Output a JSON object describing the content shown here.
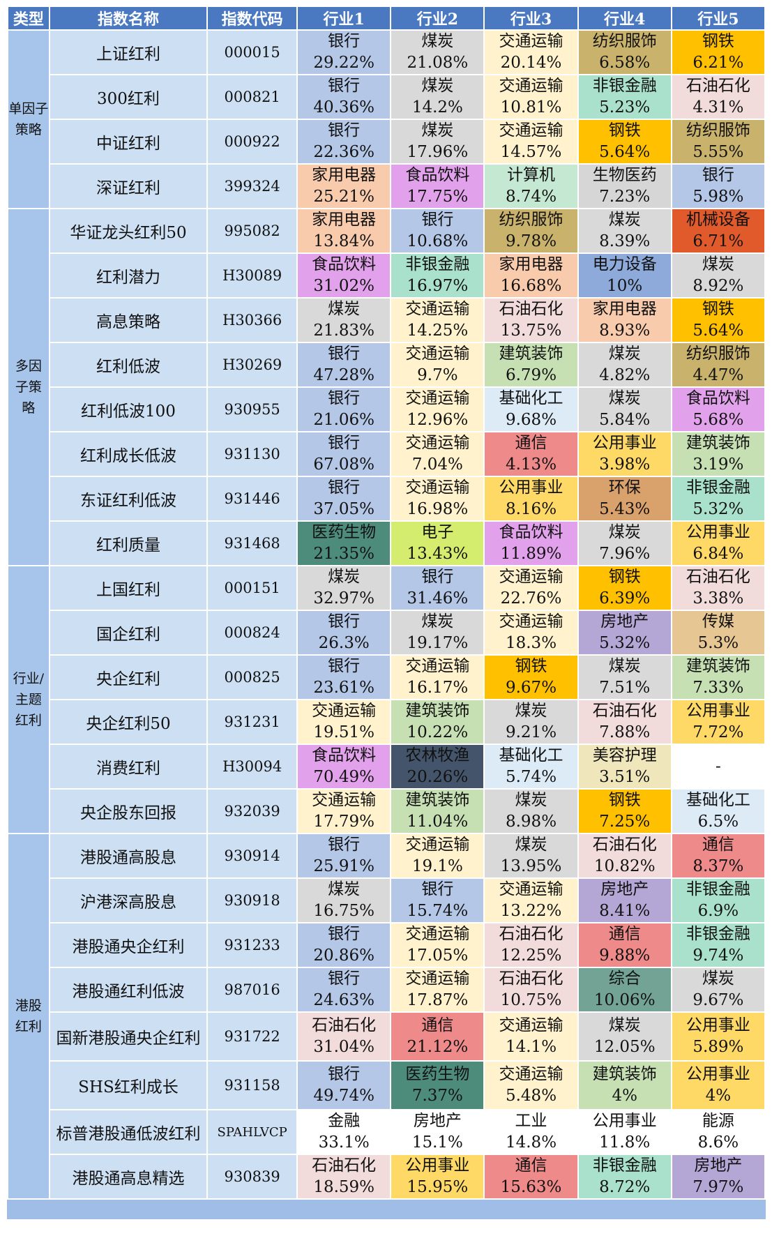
{
  "headers": [
    "类型",
    "指数名称",
    "指数代码",
    "行业1",
    "行业2",
    "行业3",
    "行业4",
    "行业5"
  ],
  "industry_colors": {
    "银行": "#b4c7e7",
    "煤炭": "#d9d9d9",
    "交通运输": "#fff2cc",
    "纺织服饰": "#c9b26b",
    "钢铁": "#ffc000",
    "非银金融": "#a9e1cd",
    "石油石化": "#f2dcdb",
    "家用电器": "#f8cbad",
    "食品饮料": "#e2a2eb",
    "计算机": "#c5e8d2",
    "生物医药": "#d6d6d6",
    "机械设备": "#e05a2b",
    "电力设备": "#8eaadb",
    "建筑装饰": "#c6e0b4",
    "基础化工": "#ddebf7",
    "通信": "#ef8a8a",
    "公用事业": "#ffd966",
    "环保": "#d9a16b",
    "医药生物": "#4d8c7a",
    "电子": "#d4ed6e",
    "房地产": "#b4a7d6",
    "传媒": "#e6c692",
    "农林牧渔": "#44546a",
    "美容护理": "#efe6bb",
    "综合": "#72a394",
    "default": "#ffffff"
  },
  "groups": [
    {
      "type": "单因子\n策略",
      "rows": [
        {
          "name": "上证红利",
          "code": "000015",
          "industries": [
            [
              "银行",
              "29.22%"
            ],
            [
              "煤炭",
              "21.08%"
            ],
            [
              "交通运输",
              "20.14%"
            ],
            [
              "纺织服饰",
              "6.58%"
            ],
            [
              "钢铁",
              "6.21%"
            ]
          ]
        },
        {
          "name": "300红利",
          "code": "000821",
          "industries": [
            [
              "银行",
              "40.36%"
            ],
            [
              "煤炭",
              "14.2%"
            ],
            [
              "交通运输",
              "10.81%"
            ],
            [
              "非银金融",
              "5.23%"
            ],
            [
              "石油石化",
              "4.31%"
            ]
          ]
        },
        {
          "name": "中证红利",
          "code": "000922",
          "industries": [
            [
              "银行",
              "22.36%"
            ],
            [
              "煤炭",
              "17.96%"
            ],
            [
              "交通运输",
              "14.57%"
            ],
            [
              "钢铁",
              "5.64%"
            ],
            [
              "纺织服饰",
              "5.55%"
            ]
          ]
        },
        {
          "name": "深证红利",
          "code": "399324",
          "industries": [
            [
              "家用电器",
              "25.21%"
            ],
            [
              "食品饮料",
              "17.75%"
            ],
            [
              "计算机",
              "8.74%"
            ],
            [
              "生物医药",
              "7.23%"
            ],
            [
              "银行",
              "5.98%"
            ]
          ]
        }
      ]
    },
    {
      "type": "多因\n子策\n略",
      "rows": [
        {
          "name": "华证龙头红利50",
          "code": "995082",
          "industries": [
            [
              "家用电器",
              "13.84%"
            ],
            [
              "银行",
              "10.68%"
            ],
            [
              "纺织服饰",
              "9.78%"
            ],
            [
              "煤炭",
              "8.39%"
            ],
            [
              "机械设备",
              "6.71%"
            ]
          ]
        },
        {
          "name": "红利潜力",
          "code": "H30089",
          "industries": [
            [
              "食品饮料",
              "31.02%"
            ],
            [
              "非银金融",
              "16.97%"
            ],
            [
              "家用电器",
              "16.68%"
            ],
            [
              "电力设备",
              "10%"
            ],
            [
              "煤炭",
              "8.92%"
            ]
          ]
        },
        {
          "name": "高息策略",
          "code": "H30366",
          "industries": [
            [
              "煤炭",
              "21.83%"
            ],
            [
              "交通运输",
              "14.25%"
            ],
            [
              "石油石化",
              "13.75%"
            ],
            [
              "家用电器",
              "8.93%"
            ],
            [
              "钢铁",
              "5.64%"
            ]
          ]
        },
        {
          "name": "红利低波",
          "code": "H30269",
          "industries": [
            [
              "银行",
              "47.28%"
            ],
            [
              "交通运输",
              "9.7%"
            ],
            [
              "建筑装饰",
              "6.79%"
            ],
            [
              "煤炭",
              "4.82%"
            ],
            [
              "纺织服饰",
              "4.47%"
            ]
          ]
        },
        {
          "name": "红利低波100",
          "code": "930955",
          "industries": [
            [
              "银行",
              "21.06%"
            ],
            [
              "交通运输",
              "12.96%"
            ],
            [
              "基础化工",
              "9.68%"
            ],
            [
              "煤炭",
              "5.84%"
            ],
            [
              "食品饮料",
              "5.68%"
            ]
          ]
        },
        {
          "name": "红利成长低波",
          "code": "931130",
          "industries": [
            [
              "银行",
              "67.08%"
            ],
            [
              "交通运输",
              "7.04%"
            ],
            [
              "通信",
              "4.13%"
            ],
            [
              "公用事业",
              "3.98%"
            ],
            [
              "建筑装饰",
              "3.19%"
            ]
          ]
        },
        {
          "name": "东证红利低波",
          "code": "931446",
          "industries": [
            [
              "银行",
              "37.05%"
            ],
            [
              "交通运输",
              "16.98%"
            ],
            [
              "公用事业",
              "8.16%"
            ],
            [
              "环保",
              "5.43%"
            ],
            [
              "非银金融",
              "5.32%"
            ]
          ]
        },
        {
          "name": "红利质量",
          "code": "931468",
          "industries": [
            [
              "医药生物",
              "21.35%"
            ],
            [
              "电子",
              "13.43%"
            ],
            [
              "食品饮料",
              "11.89%"
            ],
            [
              "煤炭",
              "7.96%"
            ],
            [
              "公用事业",
              "6.84%"
            ]
          ]
        }
      ]
    },
    {
      "type": "行业/\n主题\n红利",
      "rows": [
        {
          "name": "上国红利",
          "code": "000151",
          "industries": [
            [
              "煤炭",
              "32.97%"
            ],
            [
              "银行",
              "31.46%"
            ],
            [
              "交通运输",
              "22.76%"
            ],
            [
              "钢铁",
              "6.39%"
            ],
            [
              "石油石化",
              "3.38%"
            ]
          ]
        },
        {
          "name": "国企红利",
          "code": "000824",
          "industries": [
            [
              "银行",
              "26.3%"
            ],
            [
              "煤炭",
              "19.17%"
            ],
            [
              "交通运输",
              "18.3%"
            ],
            [
              "房地产",
              "5.32%"
            ],
            [
              "传媒",
              "5.3%"
            ]
          ]
        },
        {
          "name": "央企红利",
          "code": "000825",
          "industries": [
            [
              "银行",
              "23.61%"
            ],
            [
              "交通运输",
              "16.17%"
            ],
            [
              "钢铁",
              "9.67%"
            ],
            [
              "煤炭",
              "7.51%"
            ],
            [
              "建筑装饰",
              "7.33%"
            ]
          ]
        },
        {
          "name": "央企红利50",
          "code": "931231",
          "industries": [
            [
              "交通运输",
              "19.51%"
            ],
            [
              "建筑装饰",
              "10.22%"
            ],
            [
              "煤炭",
              "9.21%"
            ],
            [
              "石油石化",
              "7.88%"
            ],
            [
              "公用事业",
              "7.72%"
            ]
          ]
        },
        {
          "name": "消费红利",
          "code": "H30094",
          "industries": [
            [
              "食品饮料",
              "70.49%"
            ],
            [
              "农林牧渔",
              "20.26%"
            ],
            [
              "基础化工",
              "5.74%"
            ],
            [
              "美容护理",
              "3.51%"
            ],
            [
              "-",
              ""
            ]
          ]
        },
        {
          "name": "央企股东回报",
          "code": "932039",
          "industries": [
            [
              "交通运输",
              "17.79%"
            ],
            [
              "建筑装饰",
              "11.04%"
            ],
            [
              "煤炭",
              "8.98%"
            ],
            [
              "钢铁",
              "7.25%"
            ],
            [
              "基础化工",
              "6.5%"
            ]
          ]
        }
      ]
    },
    {
      "type": "港股\n红利",
      "rows": [
        {
          "name": "港股通高股息",
          "code": "930914",
          "industries": [
            [
              "银行",
              "25.91%"
            ],
            [
              "交通运输",
              "19.1%"
            ],
            [
              "煤炭",
              "13.95%"
            ],
            [
              "石油石化",
              "10.82%"
            ],
            [
              "通信",
              "8.37%"
            ]
          ]
        },
        {
          "name": "沪港深高股息",
          "code": "930918",
          "industries": [
            [
              "煤炭",
              "16.75%"
            ],
            [
              "银行",
              "15.74%"
            ],
            [
              "交通运输",
              "13.22%"
            ],
            [
              "房地产",
              "8.41%"
            ],
            [
              "非银金融",
              "6.9%"
            ]
          ]
        },
        {
          "name": "港股通央企红利",
          "code": "931233",
          "industries": [
            [
              "银行",
              "20.86%"
            ],
            [
              "交通运输",
              "17.05%"
            ],
            [
              "石油石化",
              "12.25%"
            ],
            [
              "通信",
              "9.88%"
            ],
            [
              "非银金融",
              "9.74%"
            ]
          ]
        },
        {
          "name": "港股通红利低波",
          "code": "987016",
          "industries": [
            [
              "银行",
              "24.63%"
            ],
            [
              "交通运输",
              "17.87%"
            ],
            [
              "石油石化",
              "10.75%"
            ],
            [
              "综合",
              "10.06%"
            ],
            [
              "煤炭",
              "9.67%"
            ]
          ]
        },
        {
          "name": "国新港股通央企红利",
          "code": "931722",
          "industries": [
            [
              "石油石化",
              "31.04%"
            ],
            [
              "通信",
              "21.12%"
            ],
            [
              "交通运输",
              "14.1%"
            ],
            [
              "煤炭",
              "12.05%"
            ],
            [
              "公用事业",
              "5.89%"
            ]
          ]
        },
        {
          "name": "SHS红利成长",
          "code": "931158",
          "industries": [
            [
              "银行",
              "49.74%"
            ],
            [
              "医药生物",
              "7.37%"
            ],
            [
              "交通运输",
              "5.48%"
            ],
            [
              "建筑装饰",
              "4%"
            ],
            [
              "公用事业",
              "4%"
            ]
          ]
        },
        {
          "name": "标普港股通低波红利",
          "code": "SPAHLVCP",
          "industries": [
            [
              "金融",
              "33.1%"
            ],
            [
              "房地产",
              "15.1%"
            ],
            [
              "工业",
              "14.8%"
            ],
            [
              "公用事业",
              "11.8%"
            ],
            [
              "能源",
              "8.6%"
            ]
          ],
          "plain": true
        },
        {
          "name": "港股通高息精选",
          "code": "930839",
          "industries": [
            [
              "石油石化",
              "18.59%"
            ],
            [
              "公用事业",
              "15.95%"
            ],
            [
              "通信",
              "15.63%"
            ],
            [
              "非银金融",
              "8.72%"
            ],
            [
              "房地产",
              "7.97%"
            ]
          ]
        }
      ]
    }
  ]
}
